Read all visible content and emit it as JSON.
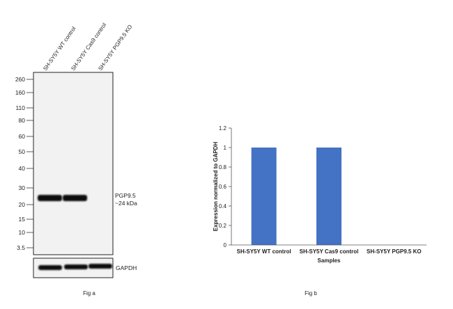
{
  "fig_a": {
    "lanes": [
      "SH-SY5Y WT control",
      "SH-SY5Y Cas9 control",
      "SH-SY5Y PGP9.5 KO"
    ],
    "markers": [
      "260",
      "160",
      "110",
      "80",
      "60",
      "50",
      "40",
      "30",
      "20",
      "15",
      "10",
      "3.5"
    ],
    "band_label_line1": "PGP9.5",
    "band_label_line2": "~24 kDa",
    "loading_label": "GAPDH",
    "caption": "Fig a"
  },
  "chart_data": {
    "type": "bar",
    "categories": [
      "SH-SY5Y WT control",
      "SH-SY5Y Cas9 control",
      "SH-SY5Y PGP9.5 KO"
    ],
    "values": [
      1,
      1,
      0
    ],
    "xlabel": "Samples",
    "ylabel": "Expression normalized to GAPDH",
    "ylim": [
      0,
      1.2
    ],
    "yticks": [
      "0",
      "0.2",
      "0.4",
      "0.6",
      "0.8",
      "1",
      "1.2"
    ],
    "bar_color": "#4472c4",
    "grid": false,
    "caption": "Fig b"
  }
}
